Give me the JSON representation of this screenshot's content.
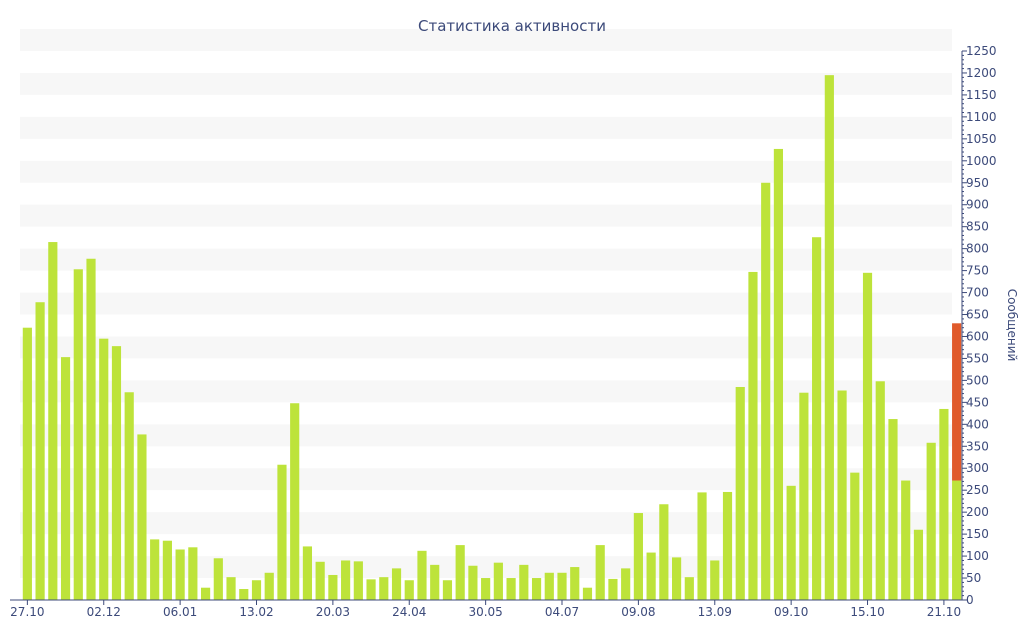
{
  "chart_data": {
    "type": "bar",
    "title": "Статистика активности",
    "ylabel": "Сообщений",
    "ylim": [
      0,
      1250
    ],
    "ytick_step": 50,
    "grid": "alternating-bands",
    "colors": {
      "bar": "#bde33a",
      "highlight": "#e05a2b",
      "axis": "#3c4a7a",
      "band": "#f7f7f7"
    },
    "x_tick_labels": [
      {
        "index": 0,
        "label": "27.10"
      },
      {
        "index": 6,
        "label": "02.12"
      },
      {
        "index": 12,
        "label": "06.01"
      },
      {
        "index": 18,
        "label": "13.02"
      },
      {
        "index": 24,
        "label": "20.03"
      },
      {
        "index": 30,
        "label": "24.04"
      },
      {
        "index": 36,
        "label": "30.05"
      },
      {
        "index": 42,
        "label": "04.07"
      },
      {
        "index": 48,
        "label": "09.08"
      },
      {
        "index": 54,
        "label": "13.09"
      },
      {
        "index": 60,
        "label": "09.10"
      },
      {
        "index": 66,
        "label": "15.10"
      },
      {
        "index": 72,
        "label": "21.10"
      }
    ],
    "values": [
      620,
      678,
      815,
      553,
      753,
      777,
      595,
      578,
      473,
      377,
      138,
      135,
      115,
      120,
      28,
      95,
      52,
      25,
      45,
      62,
      308,
      448,
      122,
      87,
      57,
      90,
      88,
      47,
      52,
      72,
      45,
      112,
      80,
      45,
      125,
      78,
      50,
      85,
      50,
      80,
      50,
      62,
      62,
      75,
      28,
      125,
      48,
      72,
      198,
      108,
      218,
      97,
      52,
      245,
      90,
      246,
      485,
      747,
      950,
      1027,
      260,
      472,
      826,
      1195,
      477,
      290,
      745,
      498,
      412,
      272,
      160,
      358,
      435,
      272
    ],
    "highlight": {
      "index": 73,
      "base": 272,
      "top": 630
    }
  }
}
